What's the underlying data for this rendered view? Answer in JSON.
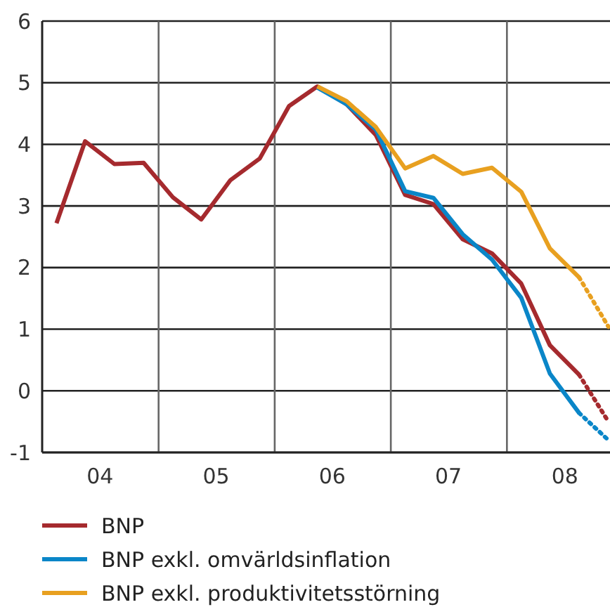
{
  "chart_data": {
    "type": "line",
    "xlim": [
      "2004-01-01",
      "2008-11-20"
    ],
    "ylim": [
      -1,
      6
    ],
    "yticks": [
      -1,
      0,
      1,
      2,
      3,
      4,
      5,
      6
    ],
    "xticks": [
      {
        "value": "2004-07-01",
        "label": "04"
      },
      {
        "value": "2005-01-01",
        "label": null
      },
      {
        "value": "2005-07-01",
        "label": "05"
      },
      {
        "value": "2006-01-01",
        "label": null
      },
      {
        "value": "2006-07-01",
        "label": "06"
      },
      {
        "value": "2007-01-01",
        "label": null
      },
      {
        "value": "2007-07-01",
        "label": "07"
      },
      {
        "value": "2008-01-01",
        "label": null
      },
      {
        "value": "2008-07-01",
        "label": "08"
      }
    ],
    "grid": true,
    "legend": "bottom",
    "marker": "none",
    "series": [
      {
        "name": "BNP",
        "color": "#a52a2e",
        "line_style": "solid",
        "x": [
          "2004-02-15",
          "2004-05-15",
          "2004-08-15",
          "2004-11-15",
          "2005-02-15",
          "2005-05-15",
          "2005-08-15",
          "2005-11-15",
          "2006-02-15",
          "2006-05-15",
          "2006-08-15",
          "2006-11-15",
          "2007-02-15",
          "2007-05-15",
          "2007-08-15",
          "2007-11-15",
          "2008-02-15",
          "2008-05-15",
          "2008-08-15"
        ],
        "values": [
          2.72,
          4.05,
          3.68,
          3.7,
          3.14,
          2.78,
          3.42,
          3.77,
          4.62,
          4.94,
          4.65,
          4.15,
          3.18,
          3.03,
          2.46,
          2.23,
          1.74,
          0.74,
          0.26
        ]
      },
      {
        "name": "BNP exkl. omvärldsinflation",
        "color": "#0a86c8",
        "line_style": "solid",
        "x": [
          "2006-05-15",
          "2006-08-15",
          "2006-11-15",
          "2007-02-15",
          "2007-05-15",
          "2007-08-15",
          "2007-11-15",
          "2008-02-15",
          "2008-05-15",
          "2008-08-15"
        ],
        "values": [
          4.92,
          4.65,
          4.24,
          3.24,
          3.13,
          2.54,
          2.13,
          1.51,
          0.28,
          -0.36
        ]
      },
      {
        "name": "BNP exkl. produktivitetsstörning",
        "color": "#e8a020",
        "line_style": "solid",
        "x": [
          "2006-05-15",
          "2006-08-15",
          "2006-11-15",
          "2007-02-15",
          "2007-05-15",
          "2007-08-15",
          "2007-11-15",
          "2008-02-15",
          "2008-05-15",
          "2008-08-15"
        ],
        "values": [
          4.94,
          4.7,
          4.28,
          3.61,
          3.81,
          3.52,
          3.62,
          3.23,
          2.31,
          1.84
        ]
      },
      {
        "color": "#a52a2e",
        "line_style": "dotted",
        "x": [
          "2008-08-15",
          "2008-11-15"
        ],
        "values": [
          0.26,
          -0.5
        ]
      },
      {
        "color": "#0a86c8",
        "line_style": "dotted",
        "x": [
          "2008-08-15",
          "2008-11-15"
        ],
        "values": [
          -0.36,
          -0.8
        ]
      },
      {
        "color": "#e8a020",
        "line_style": "dotted",
        "x": [
          "2008-08-15",
          "2008-11-15"
        ],
        "values": [
          1.84,
          1.04
        ]
      }
    ]
  }
}
